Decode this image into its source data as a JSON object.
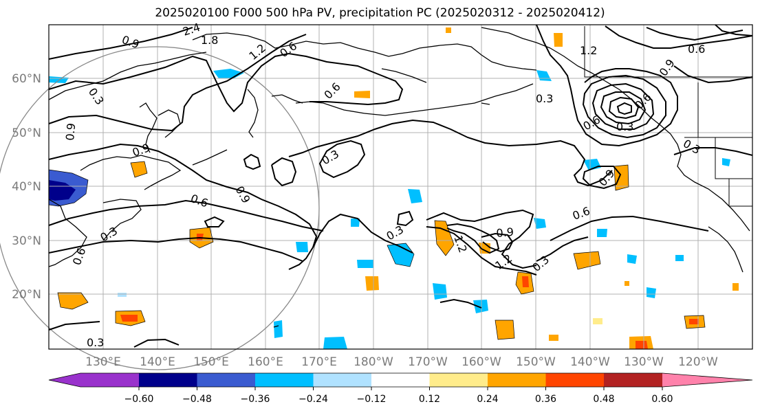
{
  "title": "2025020100 F000 500 hPa PV, precipitation PC (2025020312 - 2025020412)",
  "lat_labels": [
    "60°N",
    "50°N",
    "40°N",
    "30°N",
    "20°N"
  ],
  "lon_labels": [
    "130°E",
    "140°E",
    "150°E",
    "160°E",
    "170°E",
    "180°W",
    "170°W",
    "160°W",
    "150°W",
    "140°W",
    "130°W",
    "120°W"
  ],
  "colorbar": {
    "colors": [
      "#9932cc",
      "#00008b",
      "#3a5bd0",
      "#00bfff",
      "#b0e2ff",
      "#ffffff",
      "#ffec8b",
      "#ffa500",
      "#ff4500",
      "#b22222",
      "#ff82ab"
    ],
    "tick_labels": [
      "−0.60",
      "−0.48",
      "−0.36",
      "−0.24",
      "−0.12",
      "0.12",
      "0.24",
      "0.36",
      "0.48",
      "0.60"
    ]
  },
  "contour_labels": [
    "2.4",
    "1.8",
    "0.9",
    "1.2",
    "0.6",
    "0.3",
    "0.6",
    "0.3",
    "1.2",
    "0.6",
    "0.9",
    "0.3",
    "0.9",
    "0.9",
    "0.3",
    "0.6",
    "0.9",
    "0.6",
    "0.3",
    "0.3",
    "0.9",
    "1.2",
    "0.3",
    "0.6",
    "0.9",
    "1.2",
    "0.6",
    "0.3",
    "0.6",
    "0.3"
  ]
}
